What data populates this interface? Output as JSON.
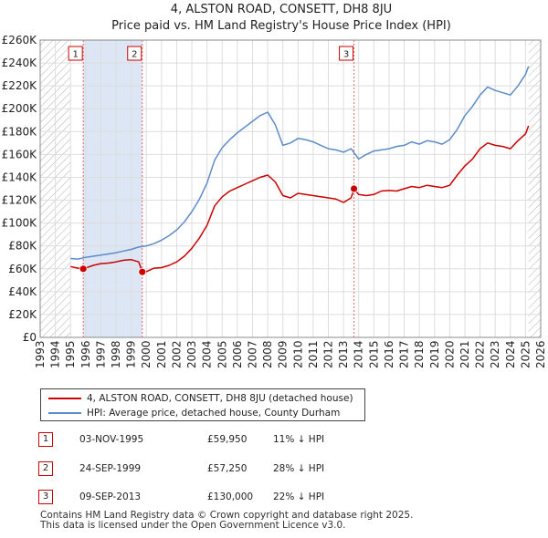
{
  "chart_data": {
    "type": "line",
    "title": "4, ALSTON ROAD, CONSETT, DH8 8JU",
    "subtitle": "Price paid vs. HM Land Registry's House Price Index (HPI)",
    "xlim": [
      1993,
      2026
    ],
    "ylim": [
      0,
      260000
    ],
    "x_ticks": [
      1993,
      1994,
      1995,
      1996,
      1997,
      1998,
      1999,
      2000,
      2001,
      2002,
      2003,
      2004,
      2005,
      2006,
      2007,
      2008,
      2009,
      2010,
      2011,
      2012,
      2013,
      2014,
      2015,
      2016,
      2017,
      2018,
      2019,
      2020,
      2021,
      2022,
      2023,
      2024,
      2025,
      2026
    ],
    "y_ticks": [
      {
        "value": 0,
        "label": "£0"
      },
      {
        "value": 20000,
        "label": "£20K"
      },
      {
        "value": 40000,
        "label": "£40K"
      },
      {
        "value": 60000,
        "label": "£60K"
      },
      {
        "value": 80000,
        "label": "£80K"
      },
      {
        "value": 100000,
        "label": "£100K"
      },
      {
        "value": 120000,
        "label": "£120K"
      },
      {
        "value": 140000,
        "label": "£140K"
      },
      {
        "value": 160000,
        "label": "£160K"
      },
      {
        "value": 180000,
        "label": "£180K"
      },
      {
        "value": 200000,
        "label": "£200K"
      },
      {
        "value": 220000,
        "label": "£220K"
      },
      {
        "value": 240000,
        "label": "£240K"
      },
      {
        "value": 260000,
        "label": "£260K"
      }
    ],
    "hatched_ranges": [
      [
        1993,
        1995.0
      ],
      [
        2025.2,
        2026
      ]
    ],
    "shaded_ranges": [
      [
        1995.84,
        1999.73
      ]
    ],
    "series": [
      {
        "name": "4, ALSTON ROAD, CONSETT, DH8 8JU (detached house)",
        "color": "#cc0000",
        "points": [
          [
            1995,
            62000
          ],
          [
            1995.5,
            60500
          ],
          [
            1995.84,
            59950
          ],
          [
            1996.5,
            63000
          ],
          [
            1997,
            64500
          ],
          [
            1997.5,
            65000
          ],
          [
            1998,
            66000
          ],
          [
            1998.5,
            67500
          ],
          [
            1999,
            68000
          ],
          [
            1999.5,
            66000
          ],
          [
            1999.73,
            57250
          ],
          [
            2000,
            57500
          ],
          [
            2000.5,
            60500
          ],
          [
            2001,
            61000
          ],
          [
            2001.5,
            63000
          ],
          [
            2002,
            66000
          ],
          [
            2002.5,
            71000
          ],
          [
            2003,
            78000
          ],
          [
            2003.5,
            87000
          ],
          [
            2004,
            98000
          ],
          [
            2004.5,
            115000
          ],
          [
            2005,
            123000
          ],
          [
            2005.5,
            128000
          ],
          [
            2006,
            131000
          ],
          [
            2006.5,
            134000
          ],
          [
            2007,
            137000
          ],
          [
            2007.5,
            140000
          ],
          [
            2008,
            142000
          ],
          [
            2008.5,
            136000
          ],
          [
            2009,
            124000
          ],
          [
            2009.5,
            122000
          ],
          [
            2010,
            126000
          ],
          [
            2010.5,
            125000
          ],
          [
            2011,
            124000
          ],
          [
            2011.5,
            123000
          ],
          [
            2012,
            122000
          ],
          [
            2012.5,
            121000
          ],
          [
            2013,
            118000
          ],
          [
            2013.5,
            122000
          ],
          [
            2013.69,
            130000
          ],
          [
            2014,
            125000
          ],
          [
            2014.5,
            124000
          ],
          [
            2015,
            125000
          ],
          [
            2015.5,
            128000
          ],
          [
            2016,
            128500
          ],
          [
            2016.5,
            128000
          ],
          [
            2017,
            130000
          ],
          [
            2017.5,
            132000
          ],
          [
            2018,
            131000
          ],
          [
            2018.5,
            133000
          ],
          [
            2019,
            132000
          ],
          [
            2019.5,
            131000
          ],
          [
            2020,
            133000
          ],
          [
            2020.5,
            142000
          ],
          [
            2021,
            150000
          ],
          [
            2021.5,
            156000
          ],
          [
            2022,
            165000
          ],
          [
            2022.5,
            170000
          ],
          [
            2023,
            168000
          ],
          [
            2023.5,
            167000
          ],
          [
            2024,
            165000
          ],
          [
            2024.5,
            172000
          ],
          [
            2025,
            178000
          ],
          [
            2025.2,
            185000
          ]
        ]
      },
      {
        "name": "HPI: Average price, detached house, County Durham",
        "color": "#5b8cc8",
        "points": [
          [
            1995,
            69000
          ],
          [
            1995.5,
            68500
          ],
          [
            1996,
            70000
          ],
          [
            1996.5,
            71000
          ],
          [
            1997,
            72000
          ],
          [
            1997.5,
            73000
          ],
          [
            1998,
            74000
          ],
          [
            1998.5,
            75500
          ],
          [
            1999,
            77000
          ],
          [
            1999.5,
            79000
          ],
          [
            2000,
            80000
          ],
          [
            2000.5,
            82000
          ],
          [
            2001,
            85000
          ],
          [
            2001.5,
            89000
          ],
          [
            2002,
            94000
          ],
          [
            2002.5,
            101000
          ],
          [
            2003,
            110000
          ],
          [
            2003.5,
            121000
          ],
          [
            2004,
            135000
          ],
          [
            2004.5,
            155000
          ],
          [
            2005,
            166000
          ],
          [
            2005.5,
            173000
          ],
          [
            2006,
            179000
          ],
          [
            2006.5,
            184000
          ],
          [
            2007,
            189000
          ],
          [
            2007.5,
            194000
          ],
          [
            2008,
            197000
          ],
          [
            2008.5,
            186000
          ],
          [
            2009,
            168000
          ],
          [
            2009.5,
            170000
          ],
          [
            2010,
            174000
          ],
          [
            2010.5,
            173000
          ],
          [
            2011,
            171000
          ],
          [
            2011.5,
            168000
          ],
          [
            2012,
            165000
          ],
          [
            2012.5,
            164000
          ],
          [
            2013,
            162000
          ],
          [
            2013.5,
            165000
          ],
          [
            2014,
            156000
          ],
          [
            2014.5,
            160000
          ],
          [
            2015,
            163000
          ],
          [
            2015.5,
            164000
          ],
          [
            2016,
            165000
          ],
          [
            2016.5,
            167000
          ],
          [
            2017,
            168000
          ],
          [
            2017.5,
            171000
          ],
          [
            2018,
            169000
          ],
          [
            2018.5,
            172000
          ],
          [
            2019,
            171000
          ],
          [
            2019.5,
            169000
          ],
          [
            2020,
            173000
          ],
          [
            2020.5,
            182000
          ],
          [
            2021,
            194000
          ],
          [
            2021.5,
            202000
          ],
          [
            2022,
            212000
          ],
          [
            2022.5,
            219000
          ],
          [
            2023,
            216000
          ],
          [
            2023.5,
            214000
          ],
          [
            2024,
            212000
          ],
          [
            2024.5,
            220000
          ],
          [
            2025,
            230000
          ],
          [
            2025.2,
            237000
          ]
        ]
      }
    ],
    "sales": [
      {
        "label": "1",
        "date": "03-NOV-1995",
        "x": 1995.84,
        "price": 59950,
        "price_text": "£59,950",
        "hpi_diff": "11% ↓ HPI"
      },
      {
        "label": "2",
        "date": "24-SEP-1999",
        "x": 1999.73,
        "price": 57250,
        "price_text": "£57,250",
        "hpi_diff": "28% ↓ HPI"
      },
      {
        "label": "3",
        "date": "09-SEP-2013",
        "x": 2013.69,
        "price": 130000,
        "price_text": "£130,000",
        "hpi_diff": "22% ↓ HPI"
      }
    ]
  },
  "legend": {
    "property_label": "4, ALSTON ROAD, CONSETT, DH8 8JU (detached house)",
    "hpi_label": "HPI: Average price, detached house, County Durham",
    "property_color": "#cc0000",
    "hpi_color": "#5b8cc8"
  },
  "transactions": [
    {
      "num": "1",
      "date": "03-NOV-1995",
      "price": "£59,950",
      "hpi": "11% ↓ HPI"
    },
    {
      "num": "2",
      "date": "24-SEP-1999",
      "price": "£57,250",
      "hpi": "28% ↓ HPI"
    },
    {
      "num": "3",
      "date": "09-SEP-2013",
      "price": "£130,000",
      "hpi": "22% ↓ HPI"
    }
  ],
  "footer": {
    "line1": "Contains HM Land Registry data © Crown copyright and database right 2025.",
    "line2": "This data is licensed under the Open Government Licence v3.0."
  }
}
